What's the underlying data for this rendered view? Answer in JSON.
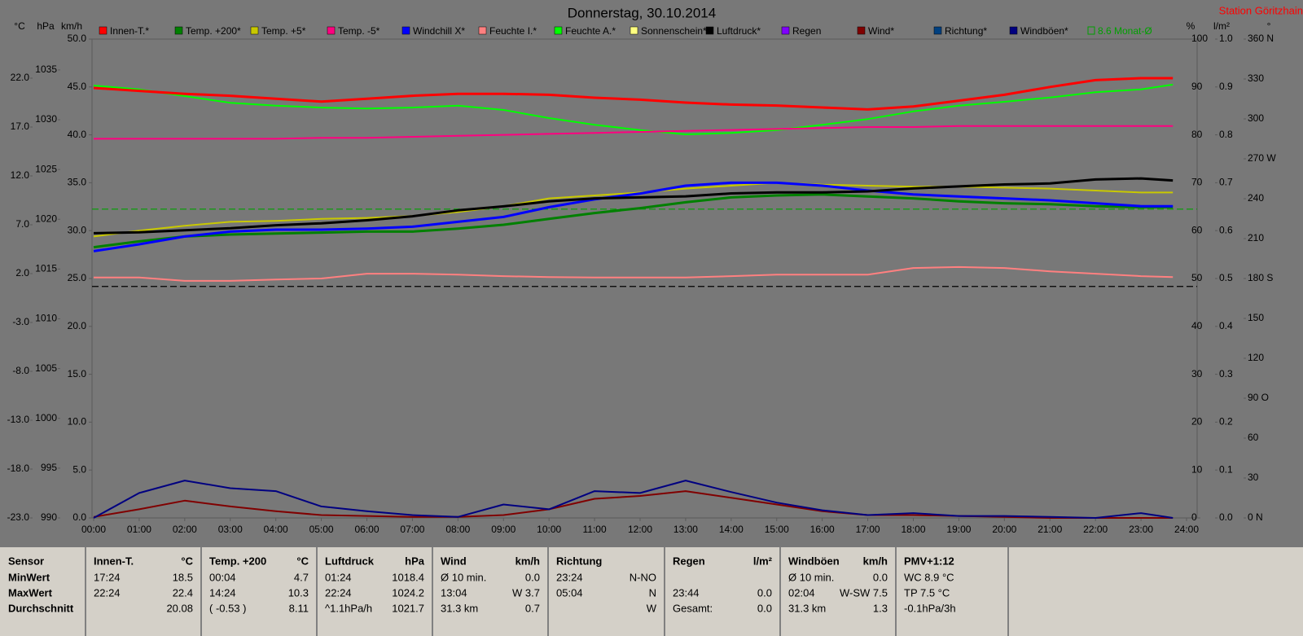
{
  "chart_data": {
    "type": "line",
    "title": "Donnerstag, 30.10.2014",
    "station": "Station Göritzhain",
    "xlim": [
      0,
      24
    ],
    "xticks": [
      {
        "value": 0,
        "label": "00:00"
      },
      {
        "value": 1,
        "label": "01:00"
      },
      {
        "value": 2,
        "label": "02:00"
      },
      {
        "value": 3,
        "label": "03:00"
      },
      {
        "value": 4,
        "label": "04:00"
      },
      {
        "value": 5,
        "label": "05:00"
      },
      {
        "value": 6,
        "label": "06:00"
      },
      {
        "value": 7,
        "label": "07:00"
      },
      {
        "value": 8,
        "label": "08:00"
      },
      {
        "value": 9,
        "label": "09:00"
      },
      {
        "value": 10,
        "label": "10:00"
      },
      {
        "value": 11,
        "label": "11:00"
      },
      {
        "value": 12,
        "label": "12:00"
      },
      {
        "value": 13,
        "label": "13:00"
      },
      {
        "value": 14,
        "label": "14:00"
      },
      {
        "value": 15,
        "label": "15:00"
      },
      {
        "value": 16,
        "label": "16:00"
      },
      {
        "value": 17,
        "label": "17:00"
      },
      {
        "value": 18,
        "label": "18:00"
      },
      {
        "value": 19,
        "label": "19:00"
      },
      {
        "value": 20,
        "label": "20:00"
      },
      {
        "value": 21,
        "label": "21:00"
      },
      {
        "value": 22,
        "label": "22:00"
      },
      {
        "value": 23,
        "label": "23:00"
      },
      {
        "value": 24,
        "label": "24:00"
      }
    ],
    "x": [
      0,
      1,
      2,
      3,
      4,
      5,
      6,
      7,
      8,
      9,
      10,
      11,
      12,
      13,
      14,
      15,
      16,
      17,
      18,
      19,
      20,
      21,
      22,
      23,
      23.7
    ],
    "axes": [
      {
        "unit": "°C",
        "lim": [
          -23,
          26
        ],
        "ticks": [
          {
            "value": -23,
            "label": "-23.0"
          },
          {
            "value": -18,
            "label": "-18.0"
          },
          {
            "value": -13,
            "label": "-13.0"
          },
          {
            "value": -8,
            "label": "-8.0"
          },
          {
            "value": -3,
            "label": "-3.0"
          },
          {
            "value": 2,
            "label": "2.0"
          },
          {
            "value": 7,
            "label": "7.0"
          },
          {
            "value": 12,
            "label": "12.0"
          },
          {
            "value": 17,
            "label": "17.0"
          },
          {
            "value": 22,
            "label": "22.0"
          }
        ]
      },
      {
        "unit": "hPa",
        "lim": [
          990,
          1038.1
        ],
        "ticks": [
          990,
          995,
          1000,
          1005,
          1010,
          1015,
          1020,
          1025,
          1030,
          1035
        ]
      },
      {
        "unit": "km/h",
        "lim": [
          0,
          50
        ],
        "ticks": [
          {
            "value": 0,
            "label": "0.0"
          },
          {
            "value": 5,
            "label": "5.0"
          },
          {
            "value": 10,
            "label": "10.0"
          },
          {
            "value": 15,
            "label": "15.0"
          },
          {
            "value": 20,
            "label": "20.0"
          },
          {
            "value": 25,
            "label": "25.0"
          },
          {
            "value": 30,
            "label": "30.0"
          },
          {
            "value": 35,
            "label": "35.0"
          },
          {
            "value": 40,
            "label": "40.0"
          },
          {
            "value": 45,
            "label": "45.0"
          },
          {
            "value": 50,
            "label": "50.0"
          }
        ]
      },
      {
        "unit": "%",
        "lim": [
          0,
          100
        ],
        "ticks": [
          0,
          10,
          20,
          30,
          40,
          50,
          60,
          70,
          80,
          90,
          100
        ]
      },
      {
        "unit": "l/m²",
        "lim": [
          0,
          1
        ],
        "ticks": [
          {
            "value": 0,
            "label": "0.0"
          },
          0.1,
          0.2,
          0.3,
          0.4,
          0.5,
          0.6,
          0.7,
          0.8,
          0.9,
          {
            "value": 1,
            "label": "1.0"
          }
        ]
      },
      {
        "unit": "°",
        "lim": [
          0,
          360
        ],
        "ticks": [
          {
            "value": 0,
            "label": "0 N"
          },
          30,
          60,
          {
            "value": 90,
            "label": "90 O"
          },
          120,
          150,
          {
            "value": 180,
            "label": "180 S"
          },
          210,
          240,
          {
            "value": 270,
            "label": "270 W"
          },
          300,
          330,
          {
            "value": 360,
            "label": "360 N"
          }
        ]
      }
    ],
    "series": [
      {
        "name": "Innen-T.*",
        "color": "#ff0000",
        "axis": "°C",
        "values": [
          21.0,
          20.7,
          20.4,
          20.2,
          19.9,
          19.6,
          19.9,
          20.2,
          20.4,
          20.4,
          20.3,
          20.0,
          19.8,
          19.5,
          19.3,
          19.2,
          19.0,
          18.8,
          19.1,
          19.7,
          20.3,
          21.1,
          21.8,
          22.0,
          22.0
        ]
      },
      {
        "name": "Temp. +200*",
        "color": "#008000",
        "axis": "°C",
        "values": [
          4.7,
          5.3,
          5.8,
          6.0,
          6.1,
          6.2,
          6.3,
          6.3,
          6.6,
          7.0,
          7.6,
          8.2,
          8.7,
          9.3,
          9.8,
          10.0,
          10.1,
          9.9,
          9.7,
          9.4,
          9.2,
          9.1,
          8.9,
          8.8,
          8.8
        ]
      },
      {
        "name": "Temp. +5*",
        "color": "#c8c800",
        "axis": "°C",
        "values": [
          5.8,
          6.4,
          6.9,
          7.3,
          7.4,
          7.6,
          7.7,
          7.9,
          8.3,
          8.9,
          9.7,
          10.0,
          10.3,
          10.7,
          11.0,
          11.3,
          11.1,
          11.0,
          10.9,
          10.9,
          10.8,
          10.7,
          10.5,
          10.3,
          10.3
        ]
      },
      {
        "name": "Temp. -5*",
        "color": "#ff0080",
        "axis": "°C",
        "values": [
          15.8,
          15.8,
          15.8,
          15.8,
          15.8,
          15.9,
          15.9,
          16.0,
          16.1,
          16.2,
          16.3,
          16.4,
          16.5,
          16.6,
          16.7,
          16.8,
          16.9,
          17.0,
          17.0,
          17.1,
          17.1,
          17.1,
          17.1,
          17.1,
          17.1
        ]
      },
      {
        "name": "Windchill X*",
        "color": "#0000ff",
        "axis": "°C",
        "values": [
          4.3,
          5.0,
          5.8,
          6.3,
          6.5,
          6.5,
          6.6,
          6.8,
          7.3,
          7.8,
          8.8,
          9.6,
          10.2,
          11.0,
          11.3,
          11.3,
          11.0,
          10.5,
          10.1,
          9.9,
          9.7,
          9.5,
          9.2,
          8.9,
          8.9
        ]
      },
      {
        "name": "Feuchte I.*",
        "color": "#ff8080",
        "axis": "%",
        "values": [
          50.2,
          50.2,
          49.5,
          49.5,
          49.8,
          50.0,
          51.0,
          51.0,
          50.8,
          50.5,
          50.3,
          50.2,
          50.2,
          50.2,
          50.5,
          50.8,
          50.8,
          50.8,
          52.2,
          52.4,
          52.2,
          51.5,
          51.0,
          50.5,
          50.3
        ]
      },
      {
        "name": "Feuchte A.*",
        "color": "#00ff00",
        "axis": "%",
        "values": [
          90.3,
          89.5,
          88.1,
          86.7,
          86.1,
          85.7,
          85.5,
          85.7,
          86.1,
          85.2,
          83.5,
          82.1,
          81.0,
          80.1,
          80.4,
          81.0,
          82.1,
          83.3,
          84.9,
          86.1,
          86.9,
          87.8,
          88.9,
          89.5,
          90.5
        ]
      },
      {
        "name": "Sonnenschein*",
        "color": "#ffff80"
      },
      {
        "name": "Luftdruck*",
        "color": "#000000",
        "axis": "hPa",
        "values": [
          1018.6,
          1018.7,
          1018.9,
          1019.1,
          1019.4,
          1019.6,
          1019.9,
          1020.3,
          1020.9,
          1021.3,
          1021.8,
          1022.1,
          1022.2,
          1022.3,
          1022.6,
          1022.7,
          1022.7,
          1022.8,
          1023.1,
          1023.3,
          1023.5,
          1023.6,
          1024.0,
          1024.1,
          1023.9
        ]
      },
      {
        "name": "Regen",
        "color": "#8000ff"
      },
      {
        "name": "Wind*",
        "color": "#800000",
        "axis": "km/h",
        "values": [
          0.1,
          0.9,
          1.8,
          1.2,
          0.7,
          0.3,
          0.2,
          0.1,
          0.1,
          0.3,
          0.9,
          2.0,
          2.3,
          2.8,
          2.1,
          1.4,
          0.7,
          0.3,
          0.3,
          0.2,
          0.1,
          0.0,
          0.0,
          0.0,
          0.0
        ]
      },
      {
        "name": "Richtung*",
        "color": "#004080"
      },
      {
        "name": "Windböen*",
        "color": "#000080",
        "axis": "km/h",
        "values": [
          0.0,
          2.6,
          3.9,
          3.1,
          2.8,
          1.2,
          0.7,
          0.3,
          0.1,
          1.4,
          0.9,
          2.8,
          2.6,
          3.9,
          2.7,
          1.6,
          0.8,
          0.3,
          0.5,
          0.2,
          0.2,
          0.1,
          0.0,
          0.5,
          0.0
        ]
      }
    ],
    "reference_lines": [
      {
        "name": "8.6 Monat-Ø",
        "color": "#00a000",
        "axis": "°C",
        "value": 8.6
      },
      {
        "color": "#000000",
        "axis": "hPa",
        "value": 1013.25
      }
    ]
  },
  "table": {
    "header": [
      {
        "left": "Sensor"
      },
      {
        "left": "Innen-T.",
        "right": "°C"
      },
      {
        "left": "Temp. +200",
        "right": "°C"
      },
      {
        "left": "Luftdruck",
        "right": "hPa"
      },
      {
        "left": "Wind",
        "right": "km/h"
      },
      {
        "left": "Richtung"
      },
      {
        "left": "Regen",
        "right": "l/m²"
      },
      {
        "left": "Windböen",
        "right": "km/h"
      },
      {
        "left": "PMV+1:12"
      }
    ],
    "rows": [
      [
        {
          "left": "MinWert"
        },
        {
          "left": "17:24",
          "right": "18.5"
        },
        {
          "left": "00:04",
          "right": "4.7"
        },
        {
          "left": "01:24",
          "right": "1018.4"
        },
        {
          "left": "Ø 10 min.",
          "right": "0.0"
        },
        {
          "left": "23:24",
          "right": "N-NO"
        },
        {},
        {
          "left": "Ø 10 min.",
          "right": "0.0"
        },
        {
          "left": "WC 8.9 °C"
        }
      ],
      [
        {
          "left": "MaxWert"
        },
        {
          "left": "22:24",
          "right": "22.4"
        },
        {
          "left": "14:24",
          "right": "10.3"
        },
        {
          "left": "22:24",
          "right": "1024.2"
        },
        {
          "left": "13:04",
          "right": "W 3.7"
        },
        {
          "left": "05:04",
          "right": "N"
        },
        {
          "left": "23:44",
          "right": "0.0"
        },
        {
          "left": "02:04",
          "right": "W-SW 7.5"
        },
        {
          "left": "TP 7.5 °C"
        }
      ],
      [
        {
          "left": "Durchschnitt"
        },
        {
          "right": "20.08"
        },
        {
          "left": "( -0.53 )",
          "right": "8.11"
        },
        {
          "left": "^1.1hPa/h",
          "right": "1021.7"
        },
        {
          "left": "31.3 km",
          "right": "0.7"
        },
        {
          "right": "W"
        },
        {
          "left": "Gesamt:",
          "right": "0.0"
        },
        {
          "left": "31.3 km",
          "right": "1.3"
        },
        {
          "left": "-0.1hPa/3h"
        }
      ]
    ]
  }
}
